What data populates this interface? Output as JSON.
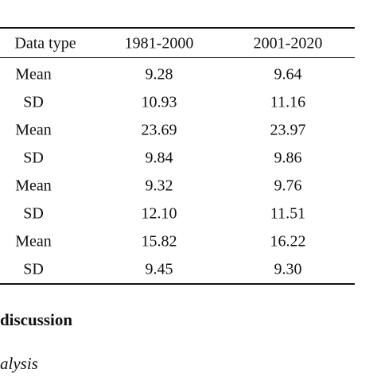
{
  "table": {
    "header": [
      "Data type",
      "1981-2000",
      "2001-2020"
    ],
    "rows": [
      [
        "Mean",
        "9.28",
        "9.64"
      ],
      [
        "SD",
        "10.93",
        "11.16"
      ],
      [
        "Mean",
        "23.69",
        "23.97"
      ],
      [
        "SD",
        "9.84",
        "9.86"
      ],
      [
        "Mean",
        "9.32",
        "9.76"
      ],
      [
        "SD",
        "12.10",
        "11.51"
      ],
      [
        "Mean",
        "15.82",
        "16.22"
      ],
      [
        "SD",
        "9.45",
        "9.30"
      ]
    ]
  },
  "section_heading": "discussion",
  "subsection_heading": "alysis"
}
